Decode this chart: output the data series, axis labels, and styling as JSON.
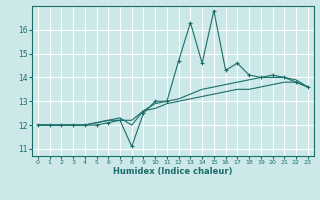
{
  "xlabel": "Humidex (Indice chaleur)",
  "bg_color": "#cce8e8",
  "line_color": "#1a6e6a",
  "grid_color": "#ffffff",
  "xlim": [
    -0.5,
    23.5
  ],
  "ylim": [
    10.7,
    17.0
  ],
  "yticks": [
    11,
    12,
    13,
    14,
    15,
    16
  ],
  "xticks": [
    0,
    1,
    2,
    3,
    4,
    5,
    6,
    7,
    8,
    9,
    10,
    11,
    12,
    13,
    14,
    15,
    16,
    17,
    18,
    19,
    20,
    21,
    22,
    23
  ],
  "series": [
    [
      12.0,
      12.0,
      12.0,
      12.0,
      12.0,
      12.0,
      12.1,
      12.2,
      11.1,
      12.5,
      13.0,
      13.0,
      14.7,
      16.3,
      14.6,
      16.8,
      14.3,
      14.6,
      14.1,
      14.0,
      14.1,
      14.0,
      13.8,
      13.6
    ],
    [
      12.0,
      12.0,
      12.0,
      12.0,
      12.0,
      12.1,
      12.2,
      12.3,
      12.0,
      12.6,
      12.9,
      13.0,
      13.1,
      13.3,
      13.5,
      13.6,
      13.7,
      13.8,
      13.9,
      14.0,
      14.0,
      14.0,
      13.9,
      13.6
    ],
    [
      12.0,
      12.0,
      12.0,
      12.0,
      12.0,
      12.1,
      12.2,
      12.2,
      12.2,
      12.6,
      12.7,
      12.9,
      13.0,
      13.1,
      13.2,
      13.3,
      13.4,
      13.5,
      13.5,
      13.6,
      13.7,
      13.8,
      13.8,
      13.6
    ]
  ]
}
